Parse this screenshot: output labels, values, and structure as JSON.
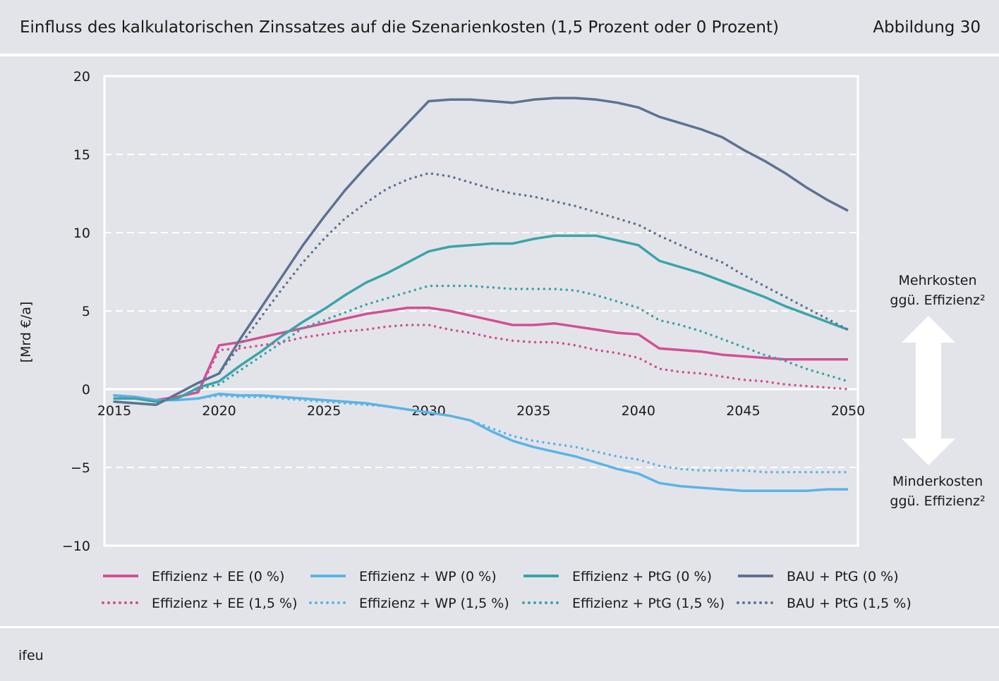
{
  "header": {
    "title": "Einfluss des kalkulatorischen Zinssatzes auf die Szenarienkosten (1,5 Prozent oder 0 Prozent)",
    "figure_label": "Abbildung 30"
  },
  "footer": {
    "source": "ifeu"
  },
  "annotations": {
    "upper_line1": "Mehrkosten",
    "upper_line2": "ggü. Effizienz²",
    "lower_line1": "Minderkosten",
    "lower_line2": "ggü. Effizienz²"
  },
  "chart_data": {
    "type": "line",
    "title": "Einfluss des kalkulatorischen Zinssatzes auf die Szenarienkosten (1,5 Prozent oder 0 Prozent)",
    "ylabel": "[Mrd €/a]",
    "xlabel": "",
    "xlim": [
      2015,
      2050
    ],
    "ylim": [
      -10,
      20
    ],
    "yticks": [
      -10,
      -5,
      0,
      5,
      10,
      15,
      20
    ],
    "ytick_labels": [
      "−10",
      "−5",
      "0",
      "5",
      "10",
      "15",
      "20"
    ],
    "xticks": [
      2015,
      2020,
      2025,
      2030,
      2035,
      2040,
      2045,
      2050
    ],
    "xtick_labels": [
      "2015",
      "2020",
      "2025",
      "2030",
      "2035",
      "2040",
      "2045",
      "2050"
    ],
    "grid": "horizontal dashed",
    "legend_position": "bottom",
    "x": [
      2015,
      2016,
      2017,
      2018,
      2019,
      2020,
      2021,
      2022,
      2023,
      2024,
      2025,
      2026,
      2027,
      2028,
      2029,
      2030,
      2031,
      2032,
      2033,
      2034,
      2035,
      2036,
      2037,
      2038,
      2039,
      2040,
      2041,
      2042,
      2043,
      2044,
      2045,
      2046,
      2047,
      2048,
      2049,
      2050
    ],
    "series": [
      {
        "name": "Effizienz + EE (0 %)",
        "color": "#d24f95",
        "style": "solid",
        "values": [
          -0.4,
          -0.5,
          -0.7,
          -0.5,
          -0.2,
          2.8,
          3.0,
          3.3,
          3.6,
          3.9,
          4.2,
          4.5,
          4.8,
          5.0,
          5.2,
          5.2,
          5.0,
          4.7,
          4.4,
          4.1,
          4.1,
          4.2,
          4.0,
          3.8,
          3.6,
          3.5,
          2.6,
          2.5,
          2.4,
          2.2,
          2.1,
          2.0,
          1.9,
          1.9,
          1.9,
          1.9
        ]
      },
      {
        "name": "Effizienz + WP (0 %)",
        "color": "#5ab4e6",
        "style": "solid",
        "values": [
          -0.4,
          -0.5,
          -0.7,
          -0.7,
          -0.6,
          -0.3,
          -0.4,
          -0.4,
          -0.5,
          -0.6,
          -0.7,
          -0.8,
          -0.9,
          -1.1,
          -1.3,
          -1.5,
          -1.7,
          -2.0,
          -2.7,
          -3.3,
          -3.7,
          -4.0,
          -4.3,
          -4.7,
          -5.1,
          -5.4,
          -6.0,
          -6.2,
          -6.3,
          -6.4,
          -6.5,
          -6.5,
          -6.5,
          -6.5,
          -6.4,
          -6.4
        ]
      },
      {
        "name": "Effizienz + PtG (0 %)",
        "color": "#3aa4aa",
        "style": "solid",
        "values": [
          -0.6,
          -0.6,
          -0.8,
          -0.6,
          0.1,
          0.5,
          1.5,
          2.4,
          3.4,
          4.3,
          5.1,
          6.0,
          6.8,
          7.4,
          8.1,
          8.8,
          9.1,
          9.2,
          9.3,
          9.3,
          9.6,
          9.8,
          9.8,
          9.8,
          9.5,
          9.2,
          8.2,
          7.8,
          7.4,
          6.9,
          6.4,
          5.9,
          5.3,
          4.8,
          4.3,
          3.8
        ]
      },
      {
        "name": "BAU + PtG (0 %)",
        "color": "#5d7293",
        "style": "solid",
        "values": [
          -0.8,
          -0.9,
          -1.0,
          -0.3,
          0.4,
          1.0,
          3.2,
          5.2,
          7.2,
          9.2,
          11.0,
          12.7,
          14.2,
          15.6,
          17.0,
          18.4,
          18.5,
          18.5,
          18.4,
          18.3,
          18.5,
          18.6,
          18.6,
          18.5,
          18.3,
          18.0,
          17.4,
          17.0,
          16.6,
          16.1,
          15.3,
          14.6,
          13.8,
          12.9,
          12.1,
          11.4
        ]
      },
      {
        "name": "Effizienz + EE (1,5 %)",
        "color": "#d24f95",
        "style": "dotted",
        "values": [
          -0.4,
          -0.5,
          -0.7,
          -0.5,
          -0.2,
          2.5,
          2.6,
          2.8,
          3.0,
          3.3,
          3.5,
          3.7,
          3.8,
          4.0,
          4.1,
          4.1,
          3.8,
          3.6,
          3.3,
          3.1,
          3.0,
          3.0,
          2.8,
          2.5,
          2.3,
          2.0,
          1.3,
          1.1,
          1.0,
          0.8,
          0.6,
          0.5,
          0.3,
          0.2,
          0.1,
          0.0
        ]
      },
      {
        "name": "Effizienz + WP (1,5 %)",
        "color": "#5ab4e6",
        "style": "dotted",
        "values": [
          -0.4,
          -0.5,
          -0.7,
          -0.7,
          -0.6,
          -0.4,
          -0.5,
          -0.5,
          -0.6,
          -0.7,
          -0.8,
          -0.9,
          -1.0,
          -1.1,
          -1.3,
          -1.5,
          -1.7,
          -2.0,
          -2.5,
          -3.0,
          -3.3,
          -3.5,
          -3.7,
          -4.0,
          -4.3,
          -4.5,
          -4.9,
          -5.1,
          -5.2,
          -5.2,
          -5.2,
          -5.3,
          -5.3,
          -5.3,
          -5.3,
          -5.3
        ]
      },
      {
        "name": "Effizienz + PtG (1,5 %)",
        "color": "#3aa4aa",
        "style": "dotted",
        "values": [
          -0.6,
          -0.6,
          -0.8,
          -0.6,
          0.0,
          0.3,
          1.2,
          2.1,
          3.0,
          3.9,
          4.4,
          4.9,
          5.4,
          5.8,
          6.2,
          6.6,
          6.6,
          6.6,
          6.5,
          6.4,
          6.4,
          6.4,
          6.3,
          6.0,
          5.6,
          5.2,
          4.4,
          4.1,
          3.7,
          3.2,
          2.7,
          2.2,
          1.8,
          1.3,
          0.9,
          0.5
        ]
      },
      {
        "name": "BAU + PtG (1,5 %)",
        "color": "#5d7293",
        "style": "dotted",
        "values": [
          -0.8,
          -0.9,
          -1.0,
          -0.3,
          0.4,
          1.0,
          2.8,
          4.6,
          6.4,
          8.1,
          9.6,
          10.9,
          11.9,
          12.8,
          13.4,
          13.8,
          13.6,
          13.2,
          12.8,
          12.5,
          12.3,
          12.0,
          11.7,
          11.3,
          10.9,
          10.5,
          9.8,
          9.2,
          8.6,
          8.1,
          7.3,
          6.6,
          5.9,
          5.2,
          4.5,
          3.8
        ]
      }
    ]
  }
}
